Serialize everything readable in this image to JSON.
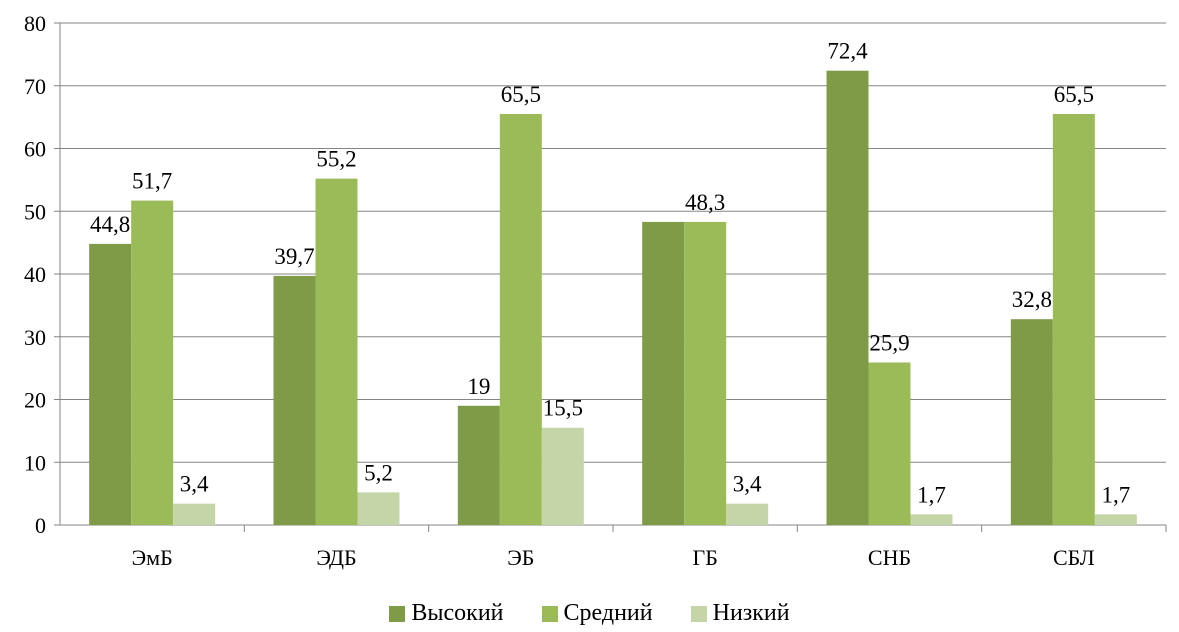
{
  "chart_data": {
    "type": "bar",
    "categories": [
      "ЭмБ",
      "ЭДБ",
      "ЭБ",
      "ГБ",
      "СНБ",
      "СБЛ"
    ],
    "series": [
      {
        "name": "Высокий",
        "values": [
          44.8,
          39.7,
          19,
          48.3,
          72.4,
          32.8
        ],
        "labels": [
          "44,8",
          "39,7",
          "19",
          "",
          "72,4",
          "32,8"
        ],
        "color": "#7f9b47"
      },
      {
        "name": "Средний",
        "values": [
          51.7,
          55.2,
          65.5,
          48.3,
          25.9,
          65.5
        ],
        "labels": [
          "51,7",
          "55,2",
          "65,5",
          "48,3",
          "25,9",
          "65,5"
        ],
        "color": "#9bbb59"
      },
      {
        "name": "Низкий",
        "values": [
          3.4,
          5.2,
          15.5,
          3.4,
          1.7,
          1.7
        ],
        "labels": [
          "3,4",
          "5,2",
          "15,5",
          "3,4",
          "1,7",
          "1,7"
        ],
        "color": "#c4d6a8"
      }
    ],
    "yticks": [
      "0",
      "10",
      "20",
      "30",
      "40",
      "50",
      "60",
      "70",
      "80"
    ],
    "ylim": [
      0,
      80
    ],
    "grid": true,
    "legend_position": "bottom"
  }
}
